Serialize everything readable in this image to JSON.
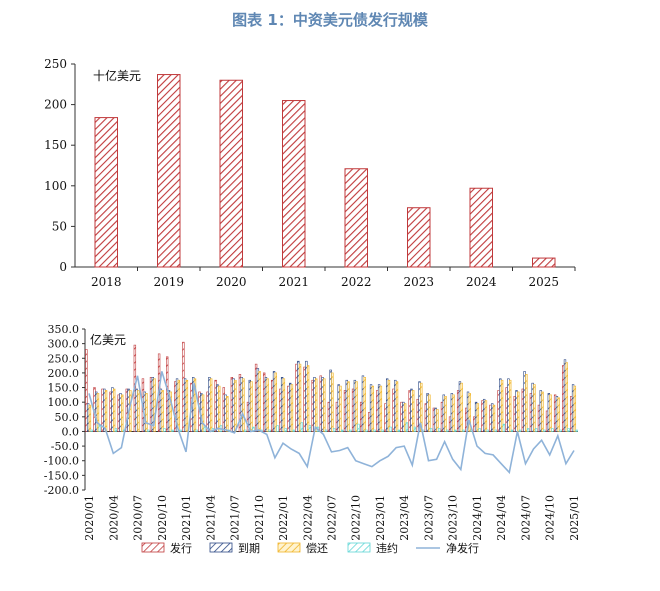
{
  "figure_title": "图表 1：中资美元债发行规模",
  "colors": {
    "title": "#5f87b3",
    "issue": "#c0393b",
    "mature": "#2e4a86",
    "repay": "#f0b429",
    "default": "#5fd6d6",
    "net": "#8fb3d9"
  },
  "chart_data": [
    {
      "type": "bar",
      "unit_label": "十亿美元",
      "categories": [
        "2018",
        "2019",
        "2020",
        "2021",
        "2022",
        "2023",
        "2024",
        "2025"
      ],
      "values": [
        184,
        237,
        230,
        205,
        121,
        73,
        97,
        11
      ],
      "ylim": [
        0,
        250
      ],
      "yticks": [
        0,
        50,
        100,
        150,
        200,
        250
      ],
      "bar_style": "red-hatched",
      "grid": false
    },
    {
      "type": "bar",
      "unit_label": "亿美元",
      "x": [
        "2020/01",
        "2020/02",
        "2020/03",
        "2020/04",
        "2020/05",
        "2020/06",
        "2020/07",
        "2020/08",
        "2020/09",
        "2020/10",
        "2020/11",
        "2020/12",
        "2021/01",
        "2021/02",
        "2021/03",
        "2021/04",
        "2021/05",
        "2021/06",
        "2021/07",
        "2021/08",
        "2021/09",
        "2021/10",
        "2021/11",
        "2021/12",
        "2022/01",
        "2022/02",
        "2022/03",
        "2022/04",
        "2022/05",
        "2022/06",
        "2022/07",
        "2022/08",
        "2022/09",
        "2022/10",
        "2022/11",
        "2022/12",
        "2023/01",
        "2023/02",
        "2023/03",
        "2023/04",
        "2023/05",
        "2023/06",
        "2023/07",
        "2023/08",
        "2023/09",
        "2023/10",
        "2023/11",
        "2023/12",
        "2024/01",
        "2024/02",
        "2024/03",
        "2024/04",
        "2024/05",
        "2024/06",
        "2024/07",
        "2024/08",
        "2024/09",
        "2024/10",
        "2024/11",
        "2024/12",
        "2025/01"
      ],
      "xtick_labels": [
        "2020/01",
        "2020/04",
        "2020/07",
        "2020/10",
        "2021/01",
        "2021/04",
        "2021/07",
        "2021/10",
        "2022/01",
        "2022/04",
        "2022/07",
        "2022/10",
        "2023/01",
        "2023/04",
        "2023/07",
        "2023/10",
        "2024/01",
        "2024/04",
        "2024/07",
        "2024/10",
        "2025/01"
      ],
      "ylim": [
        -200,
        350
      ],
      "yticks": [
        -200,
        -150,
        -100,
        -50,
        0,
        50,
        100,
        150,
        200,
        250,
        300,
        350
      ],
      "series": [
        {
          "name": "发行",
          "kind": "bar",
          "values": [
            280,
            150,
            145,
            135,
            125,
            145,
            295,
            180,
            185,
            265,
            255,
            170,
            305,
            165,
            135,
            135,
            175,
            150,
            185,
            195,
            100,
            230,
            200,
            175,
            145,
            155,
            230,
            220,
            175,
            190,
            100,
            100,
            140,
            145,
            100,
            65,
            140,
            95,
            145,
            100,
            140,
            110,
            95,
            80,
            100,
            50,
            140,
            80,
            50,
            105,
            90,
            140,
            150,
            120,
            145,
            130,
            90,
            70,
            125,
            225,
            120
          ]
        },
        {
          "name": "到期",
          "kind": "bar",
          "values": [
            95,
            135,
            145,
            150,
            130,
            145,
            145,
            135,
            185,
            145,
            140,
            180,
            180,
            185,
            130,
            185,
            160,
            125,
            180,
            185,
            175,
            215,
            185,
            205,
            185,
            165,
            240,
            240,
            185,
            185,
            210,
            160,
            175,
            175,
            190,
            160,
            160,
            180,
            175,
            100,
            145,
            170,
            130,
            80,
            125,
            130,
            170,
            135,
            100,
            110,
            95,
            180,
            180,
            140,
            205,
            165,
            140,
            130,
            120,
            245,
            160
          ]
        },
        {
          "name": "偿还",
          "kind": "bar",
          "values": [
            90,
            130,
            140,
            145,
            125,
            140,
            140,
            130,
            180,
            140,
            135,
            175,
            175,
            180,
            125,
            180,
            155,
            120,
            175,
            180,
            170,
            205,
            180,
            200,
            180,
            160,
            230,
            225,
            180,
            180,
            200,
            155,
            170,
            170,
            185,
            155,
            155,
            175,
            170,
            95,
            140,
            165,
            125,
            75,
            120,
            125,
            165,
            130,
            95,
            105,
            90,
            175,
            175,
            135,
            195,
            160,
            135,
            125,
            115,
            235,
            155
          ]
        },
        {
          "name": "违约",
          "kind": "bar",
          "values": [
            5,
            20,
            0,
            10,
            5,
            0,
            0,
            5,
            0,
            10,
            5,
            5,
            0,
            5,
            15,
            10,
            20,
            5,
            0,
            5,
            15,
            5,
            5,
            20,
            10,
            5,
            30,
            20,
            15,
            5,
            10,
            5,
            5,
            25,
            5,
            5,
            5,
            15,
            5,
            30,
            15,
            5,
            10,
            10,
            5,
            5,
            5,
            5,
            10,
            5,
            5,
            25,
            5,
            5,
            10,
            10,
            5,
            10,
            5,
            10,
            5
          ]
        },
        {
          "name": "净发行",
          "kind": "line",
          "values": [
            130,
            30,
            10,
            -75,
            -55,
            80,
            190,
            30,
            20,
            205,
            115,
            10,
            -70,
            165,
            30,
            0,
            10,
            5,
            -5,
            60,
            0,
            5,
            -10,
            -90,
            -40,
            -60,
            -75,
            -120,
            15,
            -10,
            -70,
            -65,
            -55,
            -100,
            -110,
            -120,
            -100,
            -85,
            -55,
            -50,
            -115,
            30,
            -100,
            -95,
            -35,
            -95,
            -130,
            40,
            -50,
            -75,
            -80,
            -110,
            -140,
            0,
            -110,
            -60,
            -30,
            -80,
            -15,
            -110,
            -65
          ]
        }
      ],
      "legend_position": "bottom",
      "grid": false
    }
  ]
}
